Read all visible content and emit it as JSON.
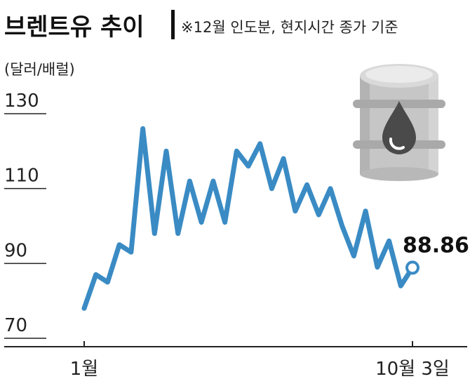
{
  "chart_data": {
    "type": "line",
    "title": "브렌트유 추이",
    "subtitle": "※12월 인도분, 현지시간 종가 기준",
    "ylabel": "(달러/배럴)",
    "xlabel": "",
    "ylim": [
      70,
      130
    ],
    "yticks": [
      130,
      110,
      90,
      70
    ],
    "xticks": [
      "1월",
      "10월 3일"
    ],
    "grid": false,
    "last_value_label": "88.86",
    "series": [
      {
        "values": [
          78,
          87,
          85,
          95,
          93,
          126,
          98,
          120,
          98,
          112,
          101,
          112,
          101,
          120,
          116,
          122,
          110,
          118,
          104,
          111,
          103,
          110,
          100,
          92,
          104,
          89,
          96,
          84,
          88.86
        ]
      }
    ],
    "colors": {
      "line": "#3a8bc4",
      "axis": "#222222",
      "text": "#1a1a1a",
      "barrel_body": "#c8c8c8",
      "barrel_rim": "#a8a8a8",
      "barrel_top": "#e0e0e0",
      "drop": "#4a4a4a"
    },
    "icon": "oil-barrel-icon"
  }
}
